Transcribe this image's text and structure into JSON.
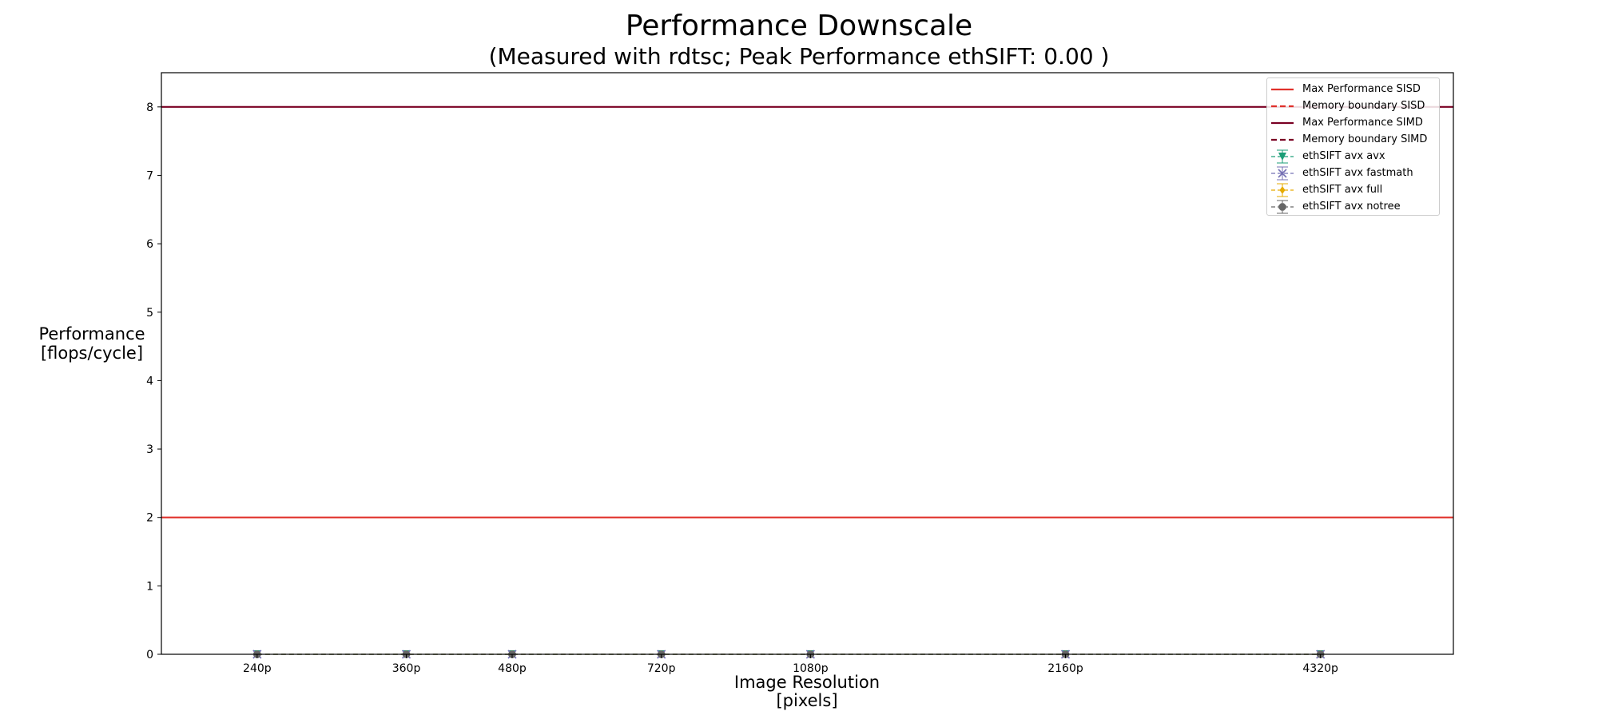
{
  "chart_data": {
    "type": "line",
    "title": "Performance Downscale",
    "subtitle": "(Measured with rdtsc; Peak Performance ethSIFT: 0.00 )",
    "xlabel": "Image Resolution\n[pixels]",
    "ylabel": "Performance\n[flops/cycle]",
    "x_numeric": [
      240,
      360,
      480,
      720,
      1080,
      2160,
      4320
    ],
    "x_scale": "log",
    "xlim": [
      185,
      6200
    ],
    "categories": [
      "240p",
      "360p",
      "480p",
      "720p",
      "1080p",
      "2160p",
      "4320p"
    ],
    "ylim": [
      0,
      8.5
    ],
    "yticks": [
      0,
      1,
      2,
      3,
      4,
      5,
      6,
      7,
      8
    ],
    "grid": false,
    "legend_position": "top-right",
    "reference_lines": [
      {
        "name": "Max Performance SISD",
        "y": 2,
        "color": "#e0312b",
        "style": "solid"
      },
      {
        "name": "Memory boundary SISD",
        "y": null,
        "color": "#e0312b",
        "style": "dashed"
      },
      {
        "name": "Max Performance SIMD",
        "y": 8,
        "color": "#7a0023",
        "style": "solid"
      },
      {
        "name": "Memory boundary SIMD",
        "y": null,
        "color": "#7a0023",
        "style": "dashed"
      }
    ],
    "series": [
      {
        "name": "ethSIFT avx avx",
        "color": "#1b9e77",
        "marker": "triangle-down",
        "values": [
          0,
          0,
          0,
          0,
          0,
          0,
          0
        ]
      },
      {
        "name": "ethSIFT avx fastmath",
        "color": "#7570b3",
        "marker": "x",
        "values": [
          0,
          0,
          0,
          0,
          0,
          0,
          0
        ]
      },
      {
        "name": "ethSIFT avx full",
        "color": "#e6ab02",
        "marker": "diamond",
        "values": [
          0,
          0,
          0,
          0,
          0,
          0,
          0
        ]
      },
      {
        "name": "ethSIFT avx notree",
        "color": "#666666",
        "marker": "octagon",
        "values": [
          0,
          0,
          0,
          0,
          0,
          0,
          0
        ]
      }
    ]
  }
}
